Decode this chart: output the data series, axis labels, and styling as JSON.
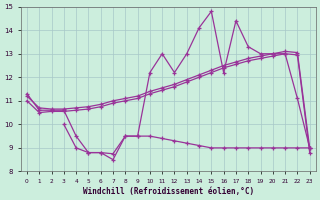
{
  "x": [
    0,
    1,
    2,
    3,
    4,
    5,
    6,
    7,
    8,
    9,
    10,
    11,
    12,
    13,
    14,
    15,
    16,
    17,
    18,
    19,
    20,
    21,
    22,
    23
  ],
  "line_main": [
    11.3,
    10.6,
    10.6,
    10.6,
    9.5,
    8.8,
    8.8,
    8.5,
    9.5,
    9.5,
    12.2,
    13.0,
    12.2,
    13.0,
    14.1,
    14.8,
    12.2,
    14.4,
    13.3,
    13.0,
    13.0,
    13.0,
    11.1,
    9.0
  ],
  "line_upper": [
    11.2,
    10.7,
    10.65,
    10.65,
    10.7,
    10.75,
    10.85,
    11.0,
    11.1,
    11.2,
    11.4,
    11.55,
    11.7,
    11.9,
    12.1,
    12.3,
    12.5,
    12.65,
    12.8,
    12.9,
    13.0,
    13.1,
    13.05,
    9.0
  ],
  "line_lower": [
    11.0,
    10.5,
    10.55,
    10.55,
    10.6,
    10.65,
    10.75,
    10.9,
    11.0,
    11.1,
    11.3,
    11.45,
    11.6,
    11.8,
    12.0,
    12.2,
    12.4,
    12.55,
    12.7,
    12.8,
    12.9,
    13.0,
    12.95,
    8.8
  ],
  "line_bottom": [
    null,
    null,
    null,
    10.0,
    9.0,
    8.8,
    8.8,
    8.75,
    9.5,
    9.5,
    9.5,
    9.4,
    9.3,
    9.2,
    9.1,
    9.0,
    9.0,
    9.0,
    9.0,
    9.0,
    9.0,
    9.0,
    9.0,
    9.0
  ],
  "line_color": "#993399",
  "background_color": "#cceedd",
  "xlim": [
    -0.5,
    23.5
  ],
  "ylim": [
    8,
    15
  ],
  "xlabel": "Windchill (Refroidissement éolien,°C)",
  "yticks": [
    8,
    9,
    10,
    11,
    12,
    13,
    14,
    15
  ],
  "xticks": [
    0,
    1,
    2,
    3,
    4,
    5,
    6,
    7,
    8,
    9,
    10,
    11,
    12,
    13,
    14,
    15,
    16,
    17,
    18,
    19,
    20,
    21,
    22,
    23
  ]
}
